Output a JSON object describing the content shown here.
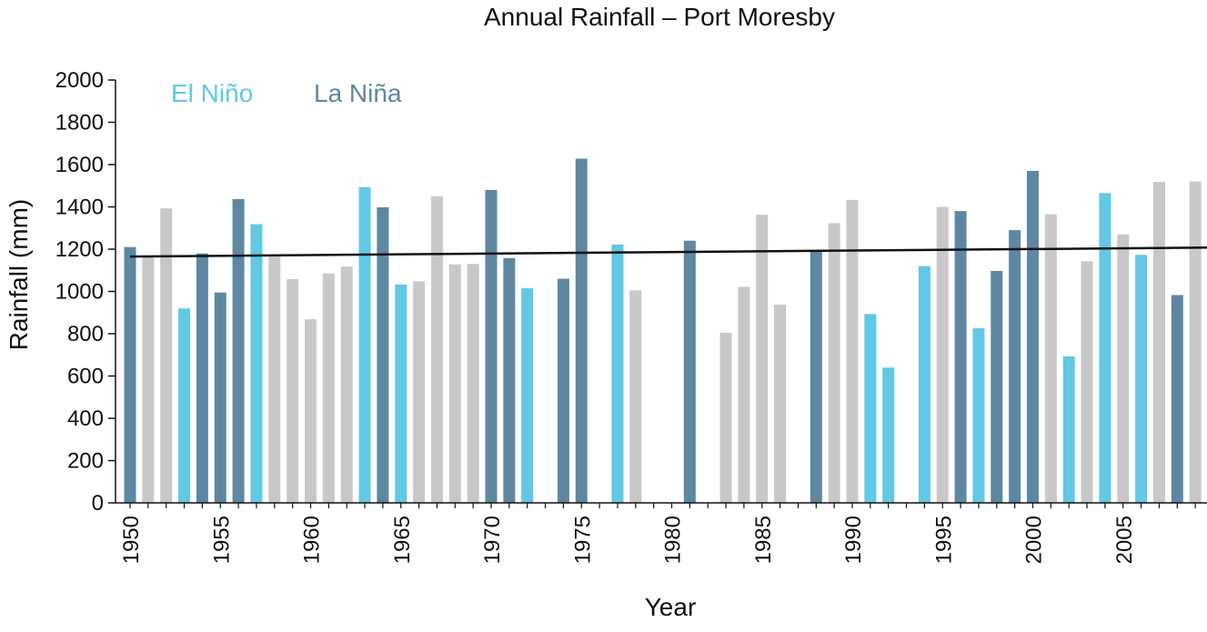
{
  "chart_data": {
    "type": "bar",
    "title": "Annual Rainfall – Port Moresby",
    "xlabel": "Year",
    "ylabel": "Rainfall (mm)",
    "ylim": [
      0,
      2000
    ],
    "yticks": [
      "0",
      "200",
      "400",
      "600",
      "800",
      "1000",
      "1200",
      "1400",
      "1600",
      "1800",
      "2000"
    ],
    "xticks": [
      "1950",
      "1955",
      "1960",
      "1965",
      "1970",
      "1975",
      "1980",
      "1985",
      "1990",
      "1995",
      "2000",
      "2005"
    ],
    "legend": {
      "placement": "top-left",
      "entries": [
        {
          "label": "El Niño",
          "color": "#62c8e3"
        },
        {
          "label": "La Niña",
          "color": "#5e87a1"
        }
      ]
    },
    "neutral_color": "#c8c8ca",
    "trend_line": {
      "color": "#111111",
      "start": [
        1950,
        1165
      ],
      "end": [
        2009,
        1208
      ]
    },
    "bars": [
      {
        "year": 1950,
        "value": 1210,
        "phase": "La Niña"
      },
      {
        "year": 1951,
        "value": 1165,
        "phase": "Neutral"
      },
      {
        "year": 1952,
        "value": 1393,
        "phase": "Neutral"
      },
      {
        "year": 1953,
        "value": 920,
        "phase": "El Niño"
      },
      {
        "year": 1954,
        "value": 1180,
        "phase": "La Niña"
      },
      {
        "year": 1955,
        "value": 995,
        "phase": "La Niña"
      },
      {
        "year": 1956,
        "value": 1437,
        "phase": "La Niña"
      },
      {
        "year": 1957,
        "value": 1318,
        "phase": "El Niño"
      },
      {
        "year": 1958,
        "value": 1165,
        "phase": "Neutral"
      },
      {
        "year": 1959,
        "value": 1058,
        "phase": "Neutral"
      },
      {
        "year": 1960,
        "value": 868,
        "phase": "Neutral"
      },
      {
        "year": 1961,
        "value": 1085,
        "phase": "Neutral"
      },
      {
        "year": 1962,
        "value": 1118,
        "phase": "Neutral"
      },
      {
        "year": 1963,
        "value": 1493,
        "phase": "El Niño"
      },
      {
        "year": 1964,
        "value": 1398,
        "phase": "La Niña"
      },
      {
        "year": 1965,
        "value": 1033,
        "phase": "El Niño"
      },
      {
        "year": 1966,
        "value": 1048,
        "phase": "Neutral"
      },
      {
        "year": 1967,
        "value": 1450,
        "phase": "Neutral"
      },
      {
        "year": 1968,
        "value": 1128,
        "phase": "Neutral"
      },
      {
        "year": 1969,
        "value": 1130,
        "phase": "Neutral"
      },
      {
        "year": 1970,
        "value": 1480,
        "phase": "La Niña"
      },
      {
        "year": 1971,
        "value": 1158,
        "phase": "La Niña"
      },
      {
        "year": 1972,
        "value": 1015,
        "phase": "El Niño"
      },
      {
        "year": 1974,
        "value": 1060,
        "phase": "La Niña"
      },
      {
        "year": 1975,
        "value": 1628,
        "phase": "La Niña"
      },
      {
        "year": 1977,
        "value": 1222,
        "phase": "El Niño"
      },
      {
        "year": 1978,
        "value": 1005,
        "phase": "Neutral"
      },
      {
        "year": 1981,
        "value": 1240,
        "phase": "La Niña"
      },
      {
        "year": 1983,
        "value": 805,
        "phase": "Neutral"
      },
      {
        "year": 1984,
        "value": 1022,
        "phase": "Neutral"
      },
      {
        "year": 1985,
        "value": 1363,
        "phase": "Neutral"
      },
      {
        "year": 1986,
        "value": 937,
        "phase": "Neutral"
      },
      {
        "year": 1988,
        "value": 1190,
        "phase": "La Niña"
      },
      {
        "year": 1989,
        "value": 1323,
        "phase": "Neutral"
      },
      {
        "year": 1990,
        "value": 1433,
        "phase": "Neutral"
      },
      {
        "year": 1991,
        "value": 893,
        "phase": "El Niño"
      },
      {
        "year": 1992,
        "value": 640,
        "phase": "El Niño"
      },
      {
        "year": 1994,
        "value": 1120,
        "phase": "El Niño"
      },
      {
        "year": 1995,
        "value": 1400,
        "phase": "Neutral"
      },
      {
        "year": 1996,
        "value": 1380,
        "phase": "La Niña"
      },
      {
        "year": 1997,
        "value": 826,
        "phase": "El Niño"
      },
      {
        "year": 1998,
        "value": 1097,
        "phase": "La Niña"
      },
      {
        "year": 1999,
        "value": 1290,
        "phase": "La Niña"
      },
      {
        "year": 2000,
        "value": 1570,
        "phase": "La Niña"
      },
      {
        "year": 2001,
        "value": 1365,
        "phase": "Neutral"
      },
      {
        "year": 2002,
        "value": 693,
        "phase": "El Niño"
      },
      {
        "year": 2003,
        "value": 1143,
        "phase": "Neutral"
      },
      {
        "year": 2004,
        "value": 1465,
        "phase": "El Niño"
      },
      {
        "year": 2005,
        "value": 1270,
        "phase": "Neutral"
      },
      {
        "year": 2006,
        "value": 1173,
        "phase": "El Niño"
      },
      {
        "year": 2007,
        "value": 1518,
        "phase": "Neutral"
      },
      {
        "year": 2008,
        "value": 983,
        "phase": "La Niña"
      },
      {
        "year": 2009,
        "value": 1520,
        "phase": "Neutral"
      }
    ]
  }
}
